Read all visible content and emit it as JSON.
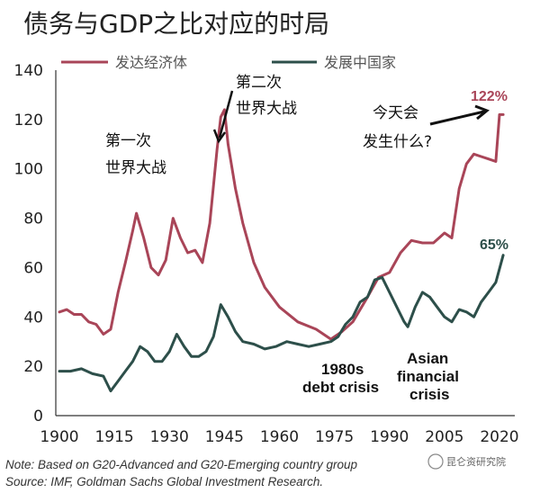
{
  "chart_data": {
    "type": "line",
    "title": "债务与GDP之比对应的时局",
    "xlabel": "",
    "ylabel": "",
    "xlim": [
      1900,
      2025
    ],
    "ylim": [
      0,
      140
    ],
    "x_ticks": [
      1900,
      1915,
      1930,
      1945,
      1960,
      1975,
      1990,
      2005,
      2020
    ],
    "y_ticks": [
      0,
      20,
      40,
      60,
      80,
      100,
      120,
      140
    ],
    "grid": false,
    "legend_position": "top",
    "series": [
      {
        "name": "发达经济体",
        "color": "#a94558",
        "end_label": "122%",
        "points": [
          [
            1900,
            42
          ],
          [
            1902,
            43
          ],
          [
            1904,
            41
          ],
          [
            1906,
            41
          ],
          [
            1908,
            38
          ],
          [
            1910,
            37
          ],
          [
            1912,
            33
          ],
          [
            1914,
            35
          ],
          [
            1916,
            50
          ],
          [
            1918,
            62
          ],
          [
            1920,
            75
          ],
          [
            1921,
            82
          ],
          [
            1923,
            72
          ],
          [
            1925,
            60
          ],
          [
            1927,
            57
          ],
          [
            1929,
            63
          ],
          [
            1931,
            80
          ],
          [
            1933,
            72
          ],
          [
            1935,
            66
          ],
          [
            1937,
            67
          ],
          [
            1939,
            62
          ],
          [
            1941,
            78
          ],
          [
            1943,
            108
          ],
          [
            1944,
            121
          ],
          [
            1945,
            124
          ],
          [
            1946,
            110
          ],
          [
            1948,
            92
          ],
          [
            1950,
            78
          ],
          [
            1953,
            62
          ],
          [
            1956,
            52
          ],
          [
            1960,
            44
          ],
          [
            1965,
            38
          ],
          [
            1970,
            35
          ],
          [
            1974,
            31
          ],
          [
            1977,
            34
          ],
          [
            1980,
            38
          ],
          [
            1984,
            48
          ],
          [
            1987,
            56
          ],
          [
            1990,
            58
          ],
          [
            1993,
            66
          ],
          [
            1996,
            71
          ],
          [
            1999,
            70
          ],
          [
            2002,
            70
          ],
          [
            2005,
            74
          ],
          [
            2007,
            72
          ],
          [
            2009,
            92
          ],
          [
            2011,
            102
          ],
          [
            2013,
            106
          ],
          [
            2015,
            105
          ],
          [
            2017,
            104
          ],
          [
            2019,
            103
          ],
          [
            2020,
            122
          ],
          [
            2021,
            122
          ]
        ]
      },
      {
        "name": "发展中国家",
        "color": "#2d4f4a",
        "end_label": "65%",
        "points": [
          [
            1900,
            18
          ],
          [
            1903,
            18
          ],
          [
            1906,
            19
          ],
          [
            1909,
            17
          ],
          [
            1912,
            16
          ],
          [
            1914,
            10
          ],
          [
            1916,
            14
          ],
          [
            1918,
            18
          ],
          [
            1920,
            22
          ],
          [
            1922,
            28
          ],
          [
            1924,
            26
          ],
          [
            1926,
            22
          ],
          [
            1928,
            22
          ],
          [
            1930,
            26
          ],
          [
            1932,
            33
          ],
          [
            1934,
            28
          ],
          [
            1936,
            24
          ],
          [
            1938,
            24
          ],
          [
            1940,
            26
          ],
          [
            1942,
            32
          ],
          [
            1944,
            45
          ],
          [
            1946,
            40
          ],
          [
            1948,
            34
          ],
          [
            1950,
            30
          ],
          [
            1953,
            29
          ],
          [
            1956,
            27
          ],
          [
            1959,
            28
          ],
          [
            1962,
            30
          ],
          [
            1965,
            29
          ],
          [
            1968,
            28
          ],
          [
            1971,
            29
          ],
          [
            1974,
            30
          ],
          [
            1976,
            32
          ],
          [
            1978,
            37
          ],
          [
            1980,
            40
          ],
          [
            1982,
            46
          ],
          [
            1984,
            48
          ],
          [
            1986,
            55
          ],
          [
            1988,
            56
          ],
          [
            1990,
            50
          ],
          [
            1992,
            44
          ],
          [
            1994,
            38
          ],
          [
            1995,
            36
          ],
          [
            1997,
            44
          ],
          [
            1999,
            50
          ],
          [
            2001,
            48
          ],
          [
            2003,
            44
          ],
          [
            2005,
            40
          ],
          [
            2007,
            38
          ],
          [
            2009,
            43
          ],
          [
            2011,
            42
          ],
          [
            2013,
            40
          ],
          [
            2015,
            46
          ],
          [
            2017,
            50
          ],
          [
            2019,
            54
          ],
          [
            2021,
            65
          ]
        ]
      }
    ],
    "annotations": {
      "ww1_line1": "第一次",
      "ww1_line2": "世界大战",
      "ww2_line1": "第二次",
      "ww2_line2": "世界大战",
      "today_line1": "今天会",
      "today_line2": "发生什么?",
      "debt_line1": "1980s",
      "debt_line2": "debt crisis",
      "asian_line1": "Asian",
      "asian_line2": "financial",
      "asian_line3": "crisis"
    },
    "note": "Note: Based on G20-Advanced and G20-Emerging country group",
    "source": "Source: IMF, Goldman Sachs Global Investment Research.",
    "watermark": "昆仑资研究院"
  }
}
